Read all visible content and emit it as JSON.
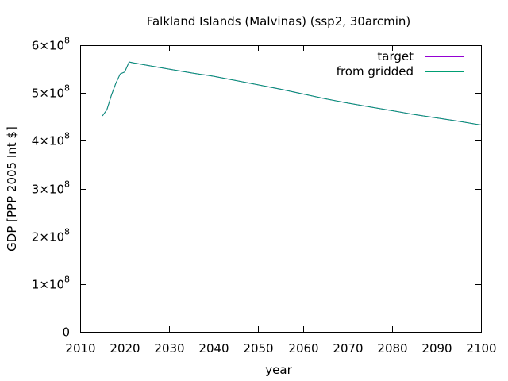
{
  "chart_data": {
    "type": "line",
    "title": "Falkland Islands (Malvinas) (ssp2, 30arcmin)",
    "xlabel": "year",
    "ylabel": "GDP [PPP 2005 Int $]",
    "xlim": [
      2010,
      2100
    ],
    "ylim": [
      0,
      600000000
    ],
    "xticks": [
      2010,
      2020,
      2030,
      2040,
      2050,
      2060,
      2070,
      2080,
      2090,
      2100
    ],
    "yticks": [
      {
        "value": 0,
        "mantissa": "0",
        "exponent": ""
      },
      {
        "value": 100000000,
        "mantissa": "1×10",
        "exponent": "8"
      },
      {
        "value": 200000000,
        "mantissa": "2×10",
        "exponent": "8"
      },
      {
        "value": 300000000,
        "mantissa": "3×10",
        "exponent": "8"
      },
      {
        "value": 400000000,
        "mantissa": "4×10",
        "exponent": "8"
      },
      {
        "value": 500000000,
        "mantissa": "5×10",
        "exponent": "8"
      },
      {
        "value": 600000000,
        "mantissa": "6×10",
        "exponent": "8"
      }
    ],
    "grid": false,
    "legend_position": "top-right",
    "series": [
      {
        "name": "target",
        "color": "#9400d3",
        "x": [
          2015,
          2016,
          2017,
          2018,
          2019,
          2020,
          2021,
          2022,
          2025,
          2030,
          2035,
          2040,
          2045,
          2050,
          2055,
          2060,
          2065,
          2070,
          2075,
          2080,
          2085,
          2090,
          2095,
          2100
        ],
        "y": [
          452000000,
          465000000,
          495000000,
          520000000,
          540000000,
          544000000,
          565000000,
          563000000,
          558000000,
          550000000,
          542000000,
          535000000,
          526000000,
          517000000,
          508000000,
          498000000,
          488000000,
          479000000,
          471000000,
          463000000,
          455000000,
          448000000,
          441000000,
          433000000
        ]
      },
      {
        "name": "from gridded",
        "color": "#009e73",
        "x": [
          2015,
          2016,
          2017,
          2018,
          2019,
          2020,
          2021,
          2022,
          2025,
          2030,
          2035,
          2040,
          2045,
          2050,
          2055,
          2060,
          2065,
          2070,
          2075,
          2080,
          2085,
          2090,
          2095,
          2100
        ],
        "y": [
          452000000,
          465000000,
          495000000,
          520000000,
          540000000,
          544000000,
          565000000,
          563000000,
          558000000,
          550000000,
          542000000,
          535000000,
          526000000,
          517000000,
          508000000,
          498000000,
          488000000,
          479000000,
          471000000,
          463000000,
          455000000,
          448000000,
          441000000,
          433000000
        ]
      }
    ]
  }
}
